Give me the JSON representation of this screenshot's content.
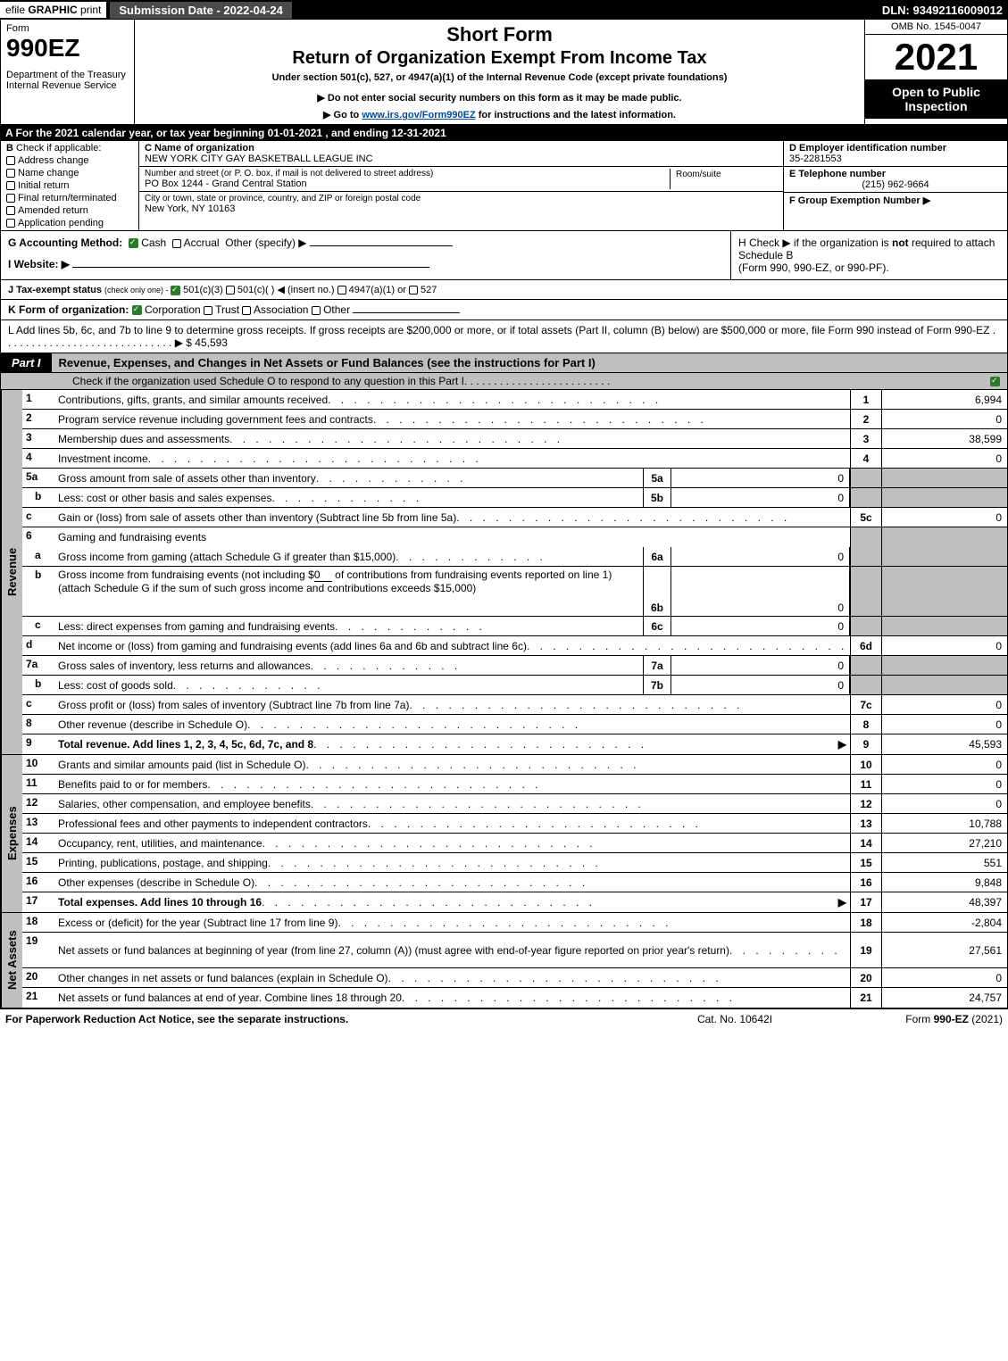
{
  "top_bar": {
    "efile_prefix": "efile ",
    "efile_bold": "GRAPHIC ",
    "efile_print": "print",
    "submission_label": "Submission Date - 2022-04-24",
    "dln": "DLN: 93492116009012"
  },
  "header": {
    "form_word": "Form",
    "form_number": "990EZ",
    "dept": "Department of the Treasury\nInternal Revenue Service",
    "short_form": "Short Form",
    "return_title": "Return of Organization Exempt From Income Tax",
    "under_section": "Under section 501(c), 527, or 4947(a)(1) of the Internal Revenue Code (except private foundations)",
    "note1": "▶ Do not enter social security numbers on this form as it may be made public.",
    "note2_prefix": "▶ Go to ",
    "note2_link": "www.irs.gov/Form990EZ",
    "note2_suffix": " for instructions and the latest information.",
    "omb": "OMB No. 1545-0047",
    "year": "2021",
    "open": "Open to Public Inspection"
  },
  "row_a": "A  For the 2021 calendar year, or tax year beginning 01-01-2021  , and ending 12-31-2021",
  "section_b": {
    "title": "B",
    "check_if": "Check if applicable:",
    "items": [
      "Address change",
      "Name change",
      "Initial return",
      "Final return/terminated",
      "Amended return",
      "Application pending"
    ]
  },
  "section_c": {
    "name_label": "C Name of organization",
    "name_value": "NEW YORK CITY GAY BASKETBALL LEAGUE INC",
    "street_label": "Number and street (or P. O. box, if mail is not delivered to street address)",
    "street_value": "PO Box 1244 - Grand Central Station",
    "room_label": "Room/suite",
    "city_label": "City or town, state or province, country, and ZIP or foreign postal code",
    "city_value": "New York, NY  10163"
  },
  "section_d": {
    "ein_label": "D Employer identification number",
    "ein_value": "35-2281553",
    "phone_label": "E Telephone number",
    "phone_value": "(215) 962-9664",
    "group_label": "F Group Exemption Number    ▶"
  },
  "section_g": {
    "label": "G Accounting Method:",
    "cash": "Cash",
    "accrual": "Accrual",
    "other": "Other (specify) ▶"
  },
  "section_h": {
    "text_prefix": "H  Check ▶ ",
    "text_mid": " if the organization is ",
    "text_not": "not",
    "text_suffix": " required to attach Schedule B",
    "text_line2": "(Form 990, 990-EZ, or 990-PF)."
  },
  "section_i": {
    "label": "I Website: ▶"
  },
  "section_j": {
    "prefix": "J Tax-exempt status ",
    "small": "(check only one) - ",
    "opt1": " 501(c)(3) ",
    "opt2": " 501(c)(  ) ◀ (insert no.) ",
    "opt3": " 4947(a)(1) or ",
    "opt4": " 527"
  },
  "section_k": {
    "prefix": "K Form of organization: ",
    "corp": " Corporation  ",
    "trust": " Trust  ",
    "assoc": " Association  ",
    "other": " Other"
  },
  "section_l": {
    "text": "L Add lines 5b, 6c, and 7b to line 9 to determine gross receipts. If gross receipts are $200,000 or more, or if total assets (Part II, column (B) below) are $500,000 or more, file Form 990 instead of Form 990-EZ",
    "dots": " . . . . . . . . . . . . . . . . . . . . . . . . . . . . .  ▶ $ ",
    "value": "45,593"
  },
  "part1": {
    "label": "Part I",
    "title": "Revenue, Expenses, and Changes in Net Assets or Fund Balances (see the instructions for Part I)",
    "subnote": "Check if the organization used Schedule O to respond to any question in this Part I"
  },
  "revenue_lines": [
    {
      "n": "1",
      "desc": "Contributions, gifts, grants, and similar amounts received",
      "rn": "1",
      "rv": "6,994"
    },
    {
      "n": "2",
      "desc": "Program service revenue including government fees and contracts",
      "rn": "2",
      "rv": "0"
    },
    {
      "n": "3",
      "desc": "Membership dues and assessments",
      "rn": "3",
      "rv": "38,599"
    },
    {
      "n": "4",
      "desc": "Investment income",
      "rn": "4",
      "rv": "0"
    }
  ],
  "line5a": {
    "n": "5a",
    "desc": "Gross amount from sale of assets other than inventory",
    "in": "5a",
    "iv": "0"
  },
  "line5b": {
    "n": "b",
    "desc": "Less: cost or other basis and sales expenses",
    "in": "5b",
    "iv": "0"
  },
  "line5c": {
    "n": "c",
    "desc": "Gain or (loss) from sale of assets other than inventory (Subtract line 5b from line 5a)",
    "rn": "5c",
    "rv": "0"
  },
  "line6": {
    "n": "6",
    "desc": "Gaming and fundraising events"
  },
  "line6a": {
    "n": "a",
    "desc": "Gross income from gaming (attach Schedule G if greater than $15,000)",
    "in": "6a",
    "iv": "0"
  },
  "line6b": {
    "n": "b",
    "desc1": "Gross income from fundraising events (not including $",
    "amt": "0",
    "desc2": "of contributions from fundraising events reported on line 1) (attach Schedule G if the sum of such gross income and contributions exceeds $15,000)",
    "in": "6b",
    "iv": "0"
  },
  "line6c": {
    "n": "c",
    "desc": "Less: direct expenses from gaming and fundraising events",
    "in": "6c",
    "iv": "0"
  },
  "line6d": {
    "n": "d",
    "desc": "Net income or (loss) from gaming and fundraising events (add lines 6a and 6b and subtract line 6c)",
    "rn": "6d",
    "rv": "0"
  },
  "line7a": {
    "n": "7a",
    "desc": "Gross sales of inventory, less returns and allowances",
    "in": "7a",
    "iv": "0"
  },
  "line7b": {
    "n": "b",
    "desc": "Less: cost of goods sold",
    "in": "7b",
    "iv": "0"
  },
  "line7c": {
    "n": "c",
    "desc": "Gross profit or (loss) from sales of inventory (Subtract line 7b from line 7a)",
    "rn": "7c",
    "rv": "0"
  },
  "line8": {
    "n": "8",
    "desc": "Other revenue (describe in Schedule O)",
    "rn": "8",
    "rv": "0"
  },
  "line9": {
    "n": "9",
    "desc": "Total revenue. Add lines 1, 2, 3, 4, 5c, 6d, 7c, and 8",
    "rn": "9",
    "rv": "45,593",
    "bold": true
  },
  "expense_lines": [
    {
      "n": "10",
      "desc": "Grants and similar amounts paid (list in Schedule O)",
      "rn": "10",
      "rv": "0"
    },
    {
      "n": "11",
      "desc": "Benefits paid to or for members",
      "rn": "11",
      "rv": "0"
    },
    {
      "n": "12",
      "desc": "Salaries, other compensation, and employee benefits",
      "rn": "12",
      "rv": "0"
    },
    {
      "n": "13",
      "desc": "Professional fees and other payments to independent contractors",
      "rn": "13",
      "rv": "10,788"
    },
    {
      "n": "14",
      "desc": "Occupancy, rent, utilities, and maintenance",
      "rn": "14",
      "rv": "27,210"
    },
    {
      "n": "15",
      "desc": "Printing, publications, postage, and shipping",
      "rn": "15",
      "rv": "551"
    },
    {
      "n": "16",
      "desc": "Other expenses (describe in Schedule O)",
      "rn": "16",
      "rv": "9,848"
    },
    {
      "n": "17",
      "desc": "Total expenses. Add lines 10 through 16",
      "rn": "17",
      "rv": "48,397",
      "bold": true
    }
  ],
  "netassets_lines": [
    {
      "n": "18",
      "desc": "Excess or (deficit) for the year (Subtract line 17 from line 9)",
      "rn": "18",
      "rv": "-2,804"
    },
    {
      "n": "19",
      "desc": "Net assets or fund balances at beginning of year (from line 27, column (A)) (must agree with end-of-year figure reported on prior year's return)",
      "rn": "19",
      "rv": "27,561",
      "tall": true
    },
    {
      "n": "20",
      "desc": "Other changes in net assets or fund balances (explain in Schedule O)",
      "rn": "20",
      "rv": "0"
    },
    {
      "n": "21",
      "desc": "Net assets or fund balances at end of year. Combine lines 18 through 20",
      "rn": "21",
      "rv": "24,757"
    }
  ],
  "footer": {
    "left": "For Paperwork Reduction Act Notice, see the separate instructions.",
    "mid": "Cat. No. 10642I",
    "right_prefix": "Form ",
    "right_bold": "990-EZ",
    "right_suffix": " (2021)"
  },
  "side_labels": {
    "revenue": "Revenue",
    "expenses": "Expenses",
    "netassets": "Net Assets"
  }
}
